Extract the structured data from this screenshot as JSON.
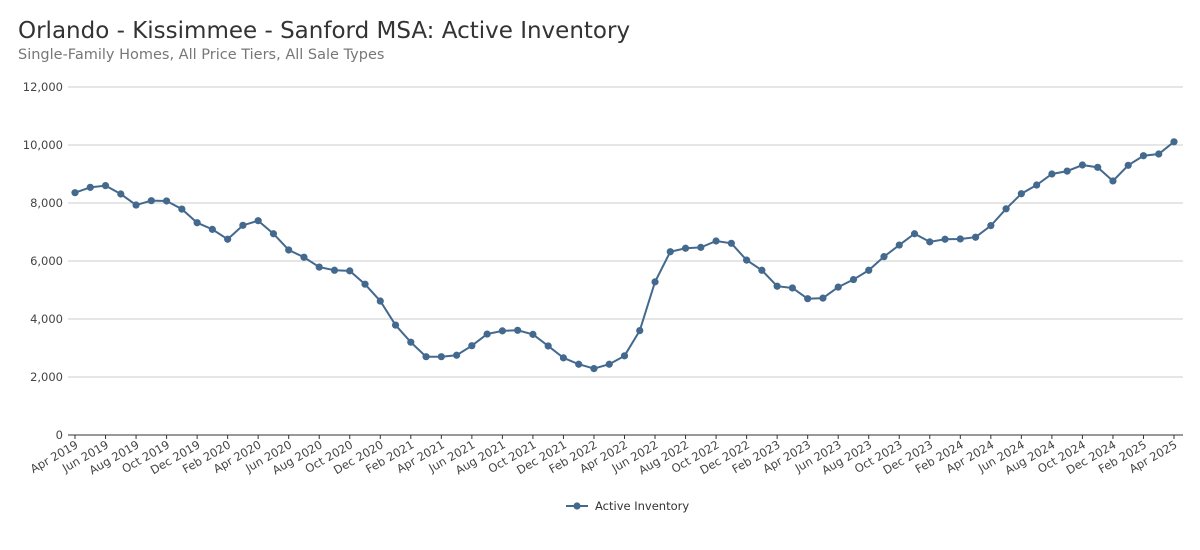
{
  "chart_data": {
    "type": "line",
    "title": "Orlando - Kissimmee - Sanford MSA: Active Inventory",
    "subtitle": "Single-Family Homes, All Price Tiers, All Sale Types",
    "ylim": [
      0,
      12000
    ],
    "yticks": [
      "0",
      "2,000",
      "4,000",
      "6,000",
      "8,000",
      "10,000",
      "12,000"
    ],
    "ytick_values": [
      0,
      2000,
      4000,
      6000,
      8000,
      10000,
      12000
    ],
    "grid": true,
    "legend_position": "bottom",
    "color": "#44698e",
    "categories": [
      "Apr 2019",
      "May 2019",
      "Jun 2019",
      "Jul 2019",
      "Aug 2019",
      "Sep 2019",
      "Oct 2019",
      "Nov 2019",
      "Dec 2019",
      "Jan 2020",
      "Feb 2020",
      "Mar 2020",
      "Apr 2020",
      "May 2020",
      "Jun 2020",
      "Jul 2020",
      "Aug 2020",
      "Sep 2020",
      "Oct 2020",
      "Nov 2020",
      "Dec 2020",
      "Jan 2021",
      "Feb 2021",
      "Mar 2021",
      "Apr 2021",
      "May 2021",
      "Jun 2021",
      "Jul 2021",
      "Aug 2021",
      "Sep 2021",
      "Oct 2021",
      "Nov 2021",
      "Dec 2021",
      "Jan 2022",
      "Feb 2022",
      "Mar 2022",
      "Apr 2022",
      "May 2022",
      "Jun 2022",
      "Jul 2022",
      "Aug 2022",
      "Sep 2022",
      "Oct 2022",
      "Nov 2022",
      "Dec 2022",
      "Jan 2023",
      "Feb 2023",
      "Mar 2023",
      "Apr 2023",
      "May 2023",
      "Jun 2023",
      "Jul 2023",
      "Aug 2023",
      "Sep 2023",
      "Oct 2023",
      "Nov 2023",
      "Dec 2023",
      "Jan 2024",
      "Feb 2024",
      "Mar 2024",
      "Apr 2024",
      "May 2024",
      "Jun 2024",
      "Jul 2024",
      "Aug 2024",
      "Sep 2024",
      "Oct 2024",
      "Nov 2024",
      "Dec 2024",
      "Jan 2025",
      "Feb 2025",
      "Mar 2025",
      "Apr 2025"
    ],
    "xtick_labels": [
      "Apr 2019",
      "Jun 2019",
      "Aug 2019",
      "Oct 2019",
      "Dec 2019",
      "Feb 2020",
      "Apr 2020",
      "Jun 2020",
      "Aug 2020",
      "Oct 2020",
      "Dec 2020",
      "Feb 2021",
      "Apr 2021",
      "Jun 2021",
      "Aug 2021",
      "Oct 2021",
      "Dec 2021",
      "Feb 2022",
      "Apr 2022",
      "Jun 2022",
      "Aug 2022",
      "Oct 2022",
      "Dec 2022",
      "Feb 2023",
      "Apr 2023",
      "Jun 2023",
      "Aug 2023",
      "Oct 2023",
      "Dec 2023",
      "Feb 2024",
      "Apr 2024",
      "Jun 2024",
      "Aug 2024",
      "Oct 2024",
      "Dec 2024",
      "Feb 2025",
      "Apr 2025"
    ],
    "series": [
      {
        "name": "Active Inventory",
        "values": [
          8355,
          8540,
          8600,
          8310,
          7930,
          8080,
          8070,
          7790,
          7320,
          7090,
          6750,
          7230,
          7390,
          6940,
          6380,
          6130,
          5790,
          5680,
          5660,
          5200,
          4620,
          3790,
          3200,
          2700,
          2700,
          2750,
          3080,
          3480,
          3590,
          3610,
          3470,
          3070,
          2660,
          2440,
          2290,
          2440,
          2730,
          3600,
          5280,
          6320,
          6440,
          6470,
          6690,
          6610,
          6030,
          5680,
          5130,
          5070,
          4700,
          4720,
          5100,
          5360,
          5680,
          6150,
          6550,
          6940,
          6660,
          6750,
          6760,
          6820,
          7220,
          7800,
          8320,
          8620,
          9000,
          9100,
          9310,
          9230,
          8760,
          9300,
          9630,
          9690,
          10110
        ]
      }
    ]
  }
}
